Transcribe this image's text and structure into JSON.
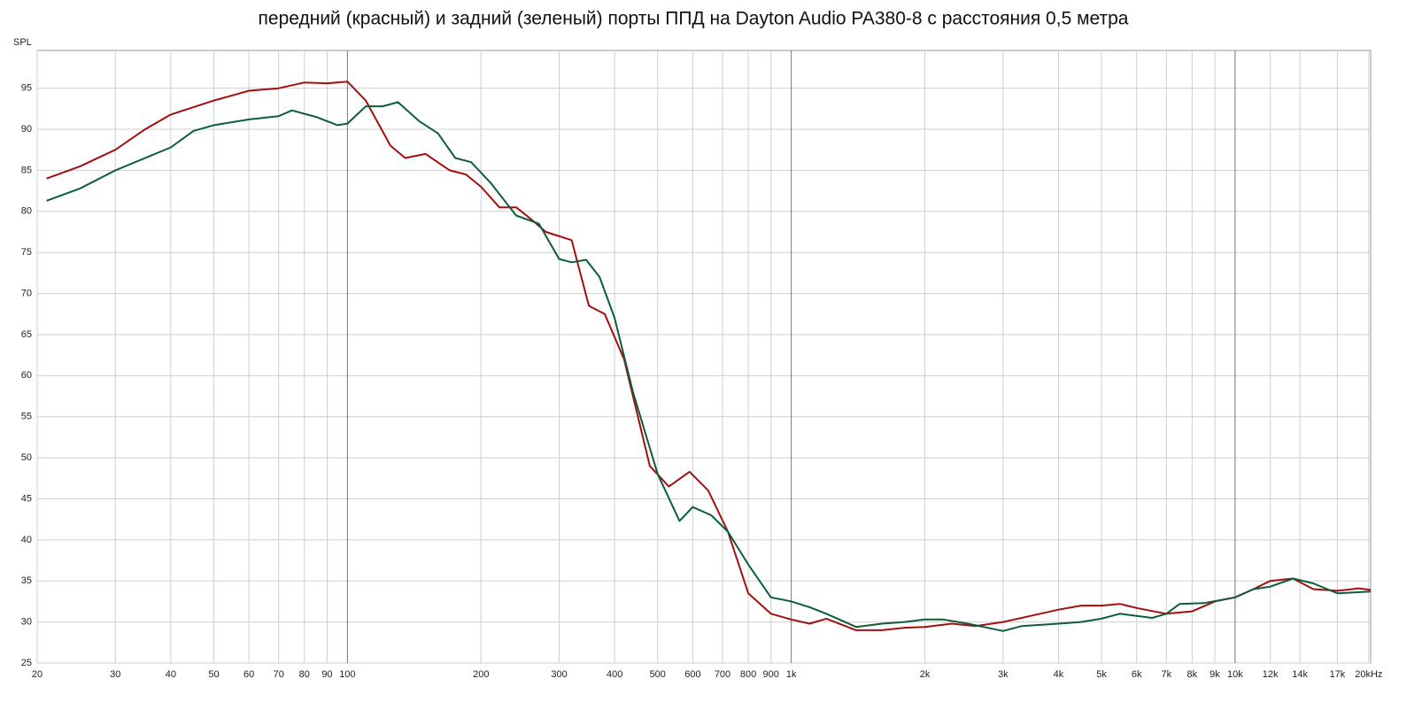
{
  "chart_data": {
    "type": "line",
    "title": "передний (красный) и задний (зеленый) порты ППД на Dayton Audio PA380-8 с расстояния 0,5 метра",
    "y_label": "SPL",
    "xscale": "log",
    "grid": true,
    "xlim": [
      20,
      20200
    ],
    "ylim": [
      25,
      99.6
    ],
    "xticks": [
      20,
      30,
      40,
      50,
      60,
      70,
      80,
      90,
      100,
      200,
      300,
      400,
      500,
      600,
      700,
      800,
      900,
      {
        "value": 1000,
        "label": "1k"
      },
      {
        "value": 2000,
        "label": "2k"
      },
      {
        "value": 3000,
        "label": "3k"
      },
      {
        "value": 4000,
        "label": "4k"
      },
      {
        "value": 5000,
        "label": "5k"
      },
      {
        "value": 6000,
        "label": "6k"
      },
      {
        "value": 7000,
        "label": "7k"
      },
      {
        "value": 8000,
        "label": "8k"
      },
      {
        "value": 9000,
        "label": "9k"
      },
      {
        "value": 10000,
        "label": "10k"
      },
      {
        "value": 12000,
        "label": "12k"
      },
      {
        "value": 14000,
        "label": "14k"
      },
      {
        "value": 17000,
        "label": "17k"
      },
      {
        "value": 20000,
        "label": "20kHz"
      }
    ],
    "yticks": [
      25,
      30,
      35,
      40,
      45,
      50,
      55,
      60,
      65,
      70,
      75,
      80,
      85,
      90,
      95
    ],
    "series": [
      {
        "color": "#a30f0f",
        "x": [
          21,
          25,
          30,
          35,
          40,
          50,
          60,
          70,
          80,
          90,
          100,
          110,
          125,
          135,
          150,
          170,
          185,
          200,
          220,
          240,
          260,
          280,
          320,
          350,
          380,
          420,
          480,
          530,
          590,
          650,
          720,
          800,
          900,
          1000,
          1100,
          1200,
          1400,
          1600,
          1800,
          2000,
          2300,
          2600,
          3000,
          3500,
          4000,
          4500,
          5000,
          5500,
          6000,
          7000,
          8000,
          9000,
          10000,
          11000,
          12000,
          13500,
          15000,
          17000,
          19000,
          20200
        ],
        "values": [
          84,
          85.5,
          87.5,
          90,
          91.8,
          93.5,
          94.7,
          95,
          95.7,
          95.6,
          95.8,
          93.5,
          88,
          86.5,
          87,
          85,
          84.5,
          83,
          80.5,
          80.5,
          79,
          77.5,
          76.5,
          68.5,
          67.5,
          62,
          49,
          46.5,
          48.3,
          46,
          41,
          33.5,
          31,
          30.3,
          29.8,
          30.4,
          29,
          29,
          29.3,
          29.4,
          29.8,
          29.5,
          30,
          30.8,
          31.5,
          32,
          32,
          32.2,
          31.7,
          31,
          31.3,
          32.5,
          33,
          34,
          35,
          35.3,
          34,
          33.8,
          34.1,
          33.9
        ]
      },
      {
        "color": "#0c5e3a",
        "x": [
          21,
          25,
          30,
          40,
          45,
          50,
          60,
          70,
          75,
          85,
          95,
          100,
          110,
          120,
          130,
          145,
          160,
          175,
          190,
          210,
          240,
          270,
          300,
          320,
          345,
          370,
          400,
          440,
          500,
          560,
          600,
          660,
          720,
          800,
          900,
          1000,
          1100,
          1200,
          1400,
          1600,
          1800,
          2000,
          2200,
          2500,
          3000,
          3300,
          4000,
          4500,
          5000,
          5500,
          6500,
          7000,
          7500,
          8500,
          10000,
          11000,
          12000,
          13500,
          15000,
          17000,
          20200
        ],
        "values": [
          81.3,
          82.8,
          85,
          87.8,
          89.8,
          90.5,
          91.2,
          91.6,
          92.3,
          91.5,
          90.5,
          90.7,
          92.8,
          92.8,
          93.3,
          91,
          89.5,
          86.5,
          86,
          83.5,
          79.5,
          78.5,
          74.2,
          73.8,
          74.1,
          72,
          67,
          58,
          48,
          42.3,
          44,
          43,
          41,
          37,
          33,
          32.5,
          31.8,
          31,
          29.4,
          29.8,
          30,
          30.3,
          30.3,
          29.8,
          28.9,
          29.5,
          29.8,
          30,
          30.4,
          31,
          30.5,
          31,
          32.2,
          32.3,
          33,
          34,
          34.3,
          35.3,
          34.7,
          33.5,
          33.7
        ]
      }
    ]
  }
}
